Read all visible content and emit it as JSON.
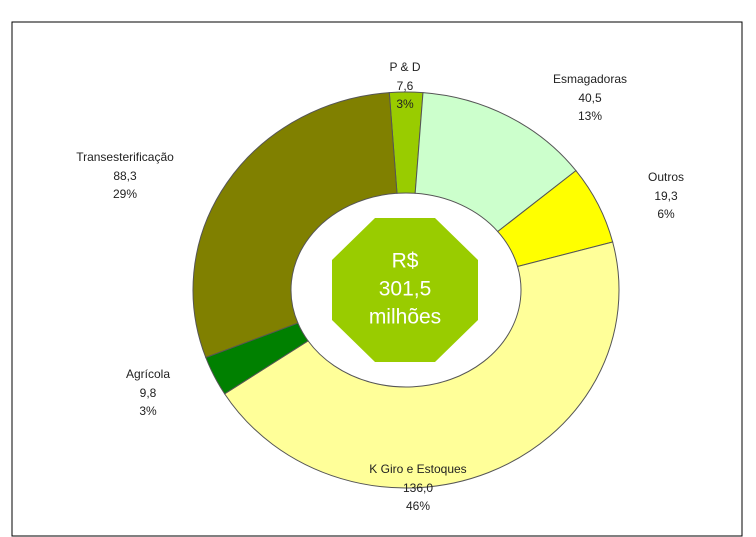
{
  "chart_data": {
    "type": "donut",
    "categories": [
      "P & D",
      "Esmagadoras",
      "Outros",
      "K Giro e Estoques",
      "Agrícola",
      "Transesterificação"
    ],
    "values": [
      7.6,
      40.5,
      19.3,
      136.0,
      9.8,
      88.3
    ],
    "value_labels": [
      "7,6",
      "40,5",
      "19,3",
      "136,0",
      "9,8",
      "88,3"
    ],
    "percent_labels": [
      "3%",
      "13%",
      "6%",
      "46%",
      "3%",
      "29%"
    ],
    "colors": [
      "#99cc00",
      "#ccffcc",
      "#ffff00",
      "#ffff99",
      "#008000",
      "#808000"
    ],
    "center_label": [
      "R$",
      "301,5",
      "milhões"
    ]
  }
}
